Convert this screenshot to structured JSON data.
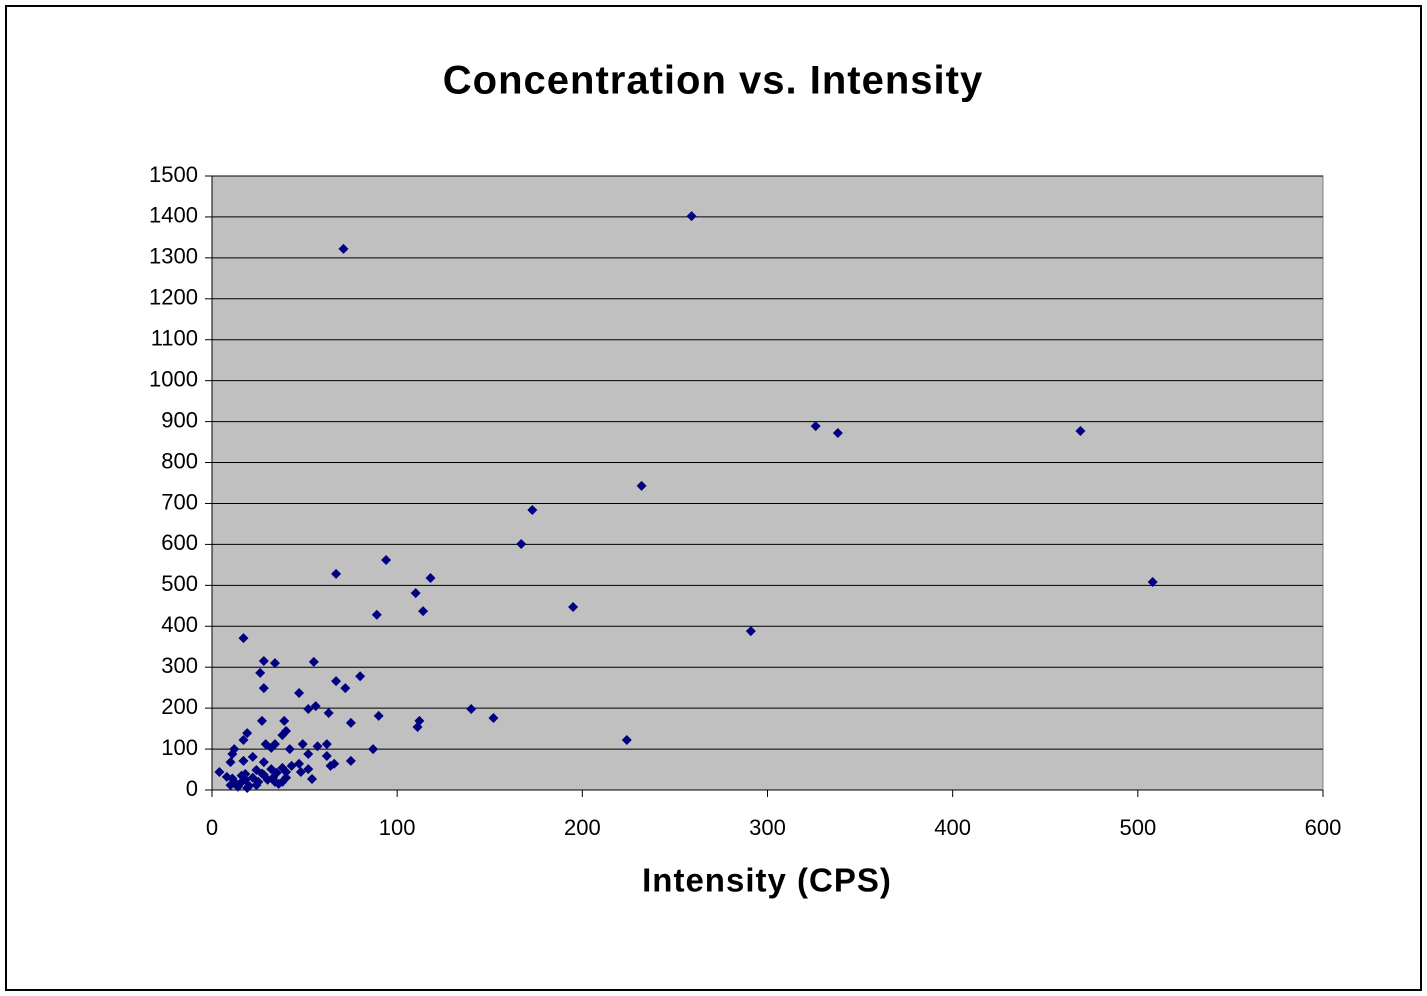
{
  "chart_data": {
    "type": "scatter",
    "title": "Concentration vs. Intensity",
    "x_label": "Intensity (CPS)",
    "x": [
      259,
      71,
      326,
      338,
      469,
      232,
      173,
      167,
      94,
      67,
      118,
      508,
      110,
      195,
      114,
      89,
      291,
      17,
      28,
      34,
      55,
      26,
      80,
      67,
      72,
      28,
      47,
      56,
      52,
      140,
      63,
      152,
      90,
      112,
      27,
      39,
      75,
      111,
      40,
      19,
      38,
      17,
      224,
      29,
      34,
      49,
      62,
      57,
      32,
      42,
      87,
      12,
      11,
      52,
      62,
      22,
      75,
      17,
      10,
      28,
      47,
      66,
      43,
      64,
      38,
      52,
      32,
      24,
      48,
      4,
      40,
      35,
      18,
      28,
      54,
      8,
      12,
      15,
      18,
      20,
      22,
      25,
      30,
      33,
      36,
      38,
      14,
      10,
      16,
      27,
      40,
      34,
      24,
      19,
      11
    ],
    "values": [
      1402,
      1322,
      889,
      872,
      877,
      743,
      684,
      601,
      562,
      528,
      518,
      508,
      481,
      447,
      437,
      428,
      388,
      371,
      315,
      310,
      313,
      286,
      278,
      266,
      249,
      249,
      237,
      205,
      198,
      198,
      188,
      176,
      181,
      169,
      169,
      169,
      164,
      154,
      144,
      139,
      134,
      122,
      122,
      112,
      112,
      112,
      112,
      107,
      103,
      100,
      100,
      100,
      88,
      88,
      83,
      81,
      71,
      71,
      68,
      68,
      64,
      64,
      59,
      59,
      54,
      51,
      51,
      49,
      44,
      44,
      44,
      42,
      39,
      37,
      27,
      32,
      20,
      15,
      25,
      10,
      30,
      20,
      25,
      30,
      15,
      20,
      8,
      12,
      35,
      40,
      30,
      20,
      12,
      5,
      28
    ],
    "color": "#000080",
    "xlim": [
      0,
      600
    ],
    "xticks": [
      0,
      100,
      200,
      300,
      400,
      500,
      600
    ],
    "ylim": [
      0,
      1500
    ],
    "yticks": [
      0,
      100,
      200,
      300,
      400,
      500,
      600,
      700,
      800,
      900,
      1000,
      1100,
      1200,
      1300,
      1400,
      1500
    ],
    "grid": true
  }
}
